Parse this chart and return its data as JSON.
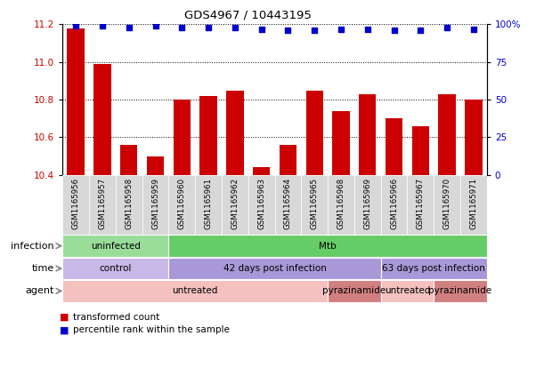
{
  "title": "GDS4967 / 10443195",
  "samples": [
    "GSM1165956",
    "GSM1165957",
    "GSM1165958",
    "GSM1165959",
    "GSM1165960",
    "GSM1165961",
    "GSM1165962",
    "GSM1165963",
    "GSM1165964",
    "GSM1165965",
    "GSM1165968",
    "GSM1165969",
    "GSM1165966",
    "GSM1165967",
    "GSM1165970",
    "GSM1165971"
  ],
  "bar_values": [
    11.18,
    10.99,
    10.56,
    10.5,
    10.8,
    10.82,
    10.85,
    10.44,
    10.56,
    10.85,
    10.74,
    10.83,
    10.7,
    10.66,
    10.83,
    10.8
  ],
  "dot_values": [
    99,
    99,
    98,
    99,
    98,
    98,
    98,
    97,
    96,
    96,
    97,
    97,
    96,
    96,
    98,
    97
  ],
  "ylim_left": [
    10.4,
    11.2
  ],
  "ylim_right": [
    0,
    100
  ],
  "yticks_left": [
    10.4,
    10.6,
    10.8,
    11.0,
    11.2
  ],
  "yticks_right": [
    0,
    25,
    50,
    75,
    100
  ],
  "bar_color": "#cc0000",
  "dot_color": "#0000cc",
  "annotation_rows": [
    {
      "label": "infection",
      "segments": [
        {
          "text": "uninfected",
          "start": 0,
          "end": 4,
          "color": "#99dd99"
        },
        {
          "text": "Mtb",
          "start": 4,
          "end": 16,
          "color": "#66cc66"
        }
      ]
    },
    {
      "label": "time",
      "segments": [
        {
          "text": "control",
          "start": 0,
          "end": 4,
          "color": "#c8b8e8"
        },
        {
          "text": "42 days post infection",
          "start": 4,
          "end": 12,
          "color": "#a898d8"
        },
        {
          "text": "63 days post infection",
          "start": 12,
          "end": 16,
          "color": "#a898d8"
        }
      ]
    },
    {
      "label": "agent",
      "segments": [
        {
          "text": "untreated",
          "start": 0,
          "end": 10,
          "color": "#f4c0c0"
        },
        {
          "text": "pyrazinamide",
          "start": 10,
          "end": 12,
          "color": "#d08080"
        },
        {
          "text": "untreated",
          "start": 12,
          "end": 14,
          "color": "#f4c0c0"
        },
        {
          "text": "pyrazinamide",
          "start": 14,
          "end": 16,
          "color": "#d08080"
        }
      ]
    }
  ],
  "legend_items": [
    {
      "label": "transformed count",
      "color": "#cc0000"
    },
    {
      "label": "percentile rank within the sample",
      "color": "#0000cc"
    }
  ]
}
